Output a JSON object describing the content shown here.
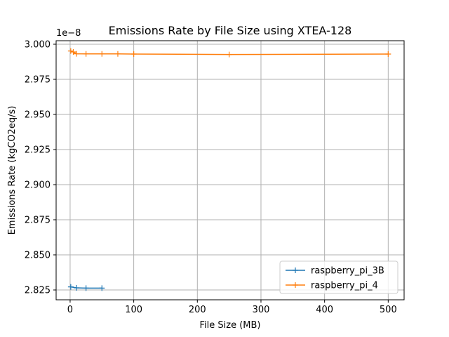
{
  "chart_data": {
    "type": "line",
    "title": "Emissions Rate by File Size using XTEA-128",
    "xlabel": "File Size (MB)",
    "ylabel": "Emissions Rate (kgCO2eq/s)",
    "y_offset_label": "1e−8",
    "xlim": [
      -22,
      525
    ],
    "ylim": [
      2.818,
      3.0025
    ],
    "x_ticks": [
      0,
      100,
      200,
      300,
      400,
      500
    ],
    "x_tick_labels": [
      "0",
      "100",
      "200",
      "300",
      "400",
      "500"
    ],
    "y_ticks": [
      2.825,
      2.85,
      2.875,
      2.9,
      2.925,
      2.95,
      2.975,
      3.0
    ],
    "y_tick_labels": [
      "2.825",
      "2.850",
      "2.875",
      "2.900",
      "2.925",
      "2.950",
      "2.975",
      "3.000"
    ],
    "grid": true,
    "legend_position": "lower-right",
    "series": [
      {
        "name": "raspberry_pi_3B",
        "color": "#1f77b4",
        "marker": "+",
        "x": [
          1,
          10,
          25,
          50
        ],
        "y": [
          2.8272,
          2.8265,
          2.8263,
          2.8263
        ]
      },
      {
        "name": "raspberry_pi_4",
        "color": "#ff7f0e",
        "marker": "+",
        "x": [
          1,
          5,
          10,
          25,
          50,
          75,
          100,
          250,
          500
        ],
        "y": [
          2.9952,
          2.9945,
          2.9932,
          2.9931,
          2.9931,
          2.9931,
          2.993,
          2.9927,
          2.993
        ]
      }
    ]
  }
}
